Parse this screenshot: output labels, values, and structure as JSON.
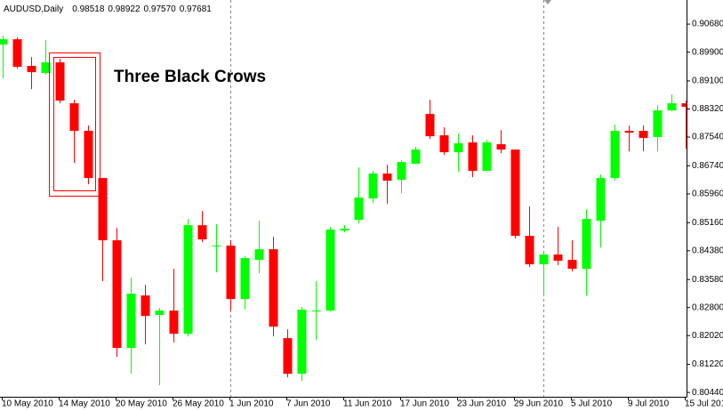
{
  "chart_data": {
    "type": "candlestick",
    "title": "AUDUSD,Daily",
    "title_values": [
      "0.98518",
      "0.98922",
      "0.97570",
      "0.97681"
    ],
    "annotation": "Three Black Crows",
    "annotation_color": "#ff0000",
    "up_color": "#00ff00",
    "down_color": "#ff0000",
    "categories": [
      "10 May 2010",
      null,
      null,
      null,
      "14 May 2010",
      null,
      null,
      null,
      "20 May 2010",
      null,
      null,
      null,
      "26 May 2010",
      null,
      null,
      null,
      "1 Jun 2010",
      null,
      null,
      null,
      "7 Jun 2010",
      null,
      null,
      null,
      "11 Jun 2010",
      null,
      null,
      null,
      "17 Jun 2010",
      null,
      null,
      null,
      "23 Jun 2010",
      null,
      null,
      null,
      "29 Jun 2010",
      null,
      null,
      null,
      "5 Jul 2010",
      null,
      null,
      null,
      "9 Jul 2010",
      null,
      null,
      null,
      "15 Jul 201"
    ],
    "open": [
      0.90111,
      0.90259,
      0.89517,
      0.8932,
      0.89616,
      0.88479,
      0.87712,
      0.86401,
      0.8467,
      0.81677,
      0.83136,
      0.82592,
      0.82716,
      0.82072,
      0.8509,
      0.84496,
      0.84521,
      0.83037,
      0.84125,
      0.84422,
      0.81949,
      0.80959,
      0.82691,
      0.82716,
      0.84942,
      0.85238,
      0.85832,
      0.86525,
      0.86351,
      0.86797,
      0.88182,
      0.87588,
      0.87118,
      0.8739,
      0.86599,
      0.87341,
      0.87192,
      0.84793,
      0.84002,
      0.84274,
      0.84125,
      0.83878,
      0.85214,
      0.86401,
      0.87712,
      0.87712,
      0.87539,
      0.88281,
      0.88479
    ],
    "high": [
      0.90358,
      0.90309,
      0.89765,
      0.90235,
      0.89715,
      0.88577,
      0.8786,
      0.86401,
      0.85016,
      0.83631,
      0.83433,
      0.8279,
      0.83878,
      0.85263,
      0.85486,
      0.85115,
      0.8467,
      0.84224,
      0.85214,
      0.84768,
      0.82196,
      0.82814,
      0.83532,
      0.8504,
      0.8509,
      0.86698,
      0.86599,
      0.86772,
      0.86896,
      0.87267,
      0.88577,
      0.87811,
      0.87638,
      0.87588,
      0.87464,
      0.87737,
      0.87192,
      0.85609,
      0.84348,
      0.8504,
      0.8467,
      0.85535,
      0.865,
      0.87885,
      0.8786,
      0.8786,
      0.88429,
      0.88726,
      0.88553
    ],
    "low": [
      0.89171,
      0.89443,
      0.88874,
      0.8927,
      0.88479,
      0.86821,
      0.86228,
      0.83532,
      0.81429,
      0.80959,
      0.81776,
      0.80638,
      0.81825,
      0.81998,
      0.8462,
      0.83779,
      0.82716,
      0.8274,
      0.83754,
      0.81998,
      0.8086,
      0.80762,
      0.81899,
      0.82691,
      0.84892,
      0.8514,
      0.85708,
      0.85684,
      0.8598,
      0.86797,
      0.87489,
      0.87044,
      0.86574,
      0.86426,
      0.86599,
      0.87093,
      0.84719,
      0.83928,
      0.83111,
      0.83977,
      0.83804,
      0.83136,
      0.84472,
      0.86327,
      0.87143,
      0.87143,
      0.87143,
      0.88256,
      0.87217
    ],
    "close": [
      0.90259,
      0.89493,
      0.89344,
      0.89616,
      0.88553,
      0.87712,
      0.86401,
      0.8467,
      0.81677,
      0.83185,
      0.82567,
      0.82716,
      0.82072,
      0.8509,
      0.84694,
      0.84521,
      0.83037,
      0.84175,
      0.84422,
      0.8227,
      0.80959,
      0.8274,
      0.82716,
      0.84966,
      0.84991,
      0.85857,
      0.86525,
      0.86327,
      0.86846,
      0.87192,
      0.87563,
      0.87118,
      0.87366,
      0.86599,
      0.8739,
      0.87192,
      0.84793,
      0.84002,
      0.84274,
      0.84101,
      0.83878,
      0.85263,
      0.86401,
      0.87712,
      0.87662,
      0.87514,
      0.88281,
      0.88479,
      0.8838
    ],
    "ylim": [
      0.8032,
      0.9135
    ],
    "yticks": [
      {
        "value": 0.9068,
        "label": "0.90680"
      },
      {
        "value": 0.899,
        "label": "0.89900"
      },
      {
        "value": 0.891,
        "label": "0.89100"
      },
      {
        "value": 0.8832,
        "label": "0.88320"
      },
      {
        "value": 0.8754,
        "label": "0.87540"
      },
      {
        "value": 0.8674,
        "label": "0.86740"
      },
      {
        "value": 0.8596,
        "label": "0.85960"
      },
      {
        "value": 0.8516,
        "label": "0.85160"
      },
      {
        "value": 0.8438,
        "label": "0.84380"
      },
      {
        "value": 0.8358,
        "label": "0.83580"
      },
      {
        "value": 0.828,
        "label": "0.82800"
      },
      {
        "value": 0.8202,
        "label": "0.82020"
      },
      {
        "value": 0.8122,
        "label": "0.81220"
      },
      {
        "value": 0.8044,
        "label": "0.80440"
      }
    ],
    "grid": false
  }
}
